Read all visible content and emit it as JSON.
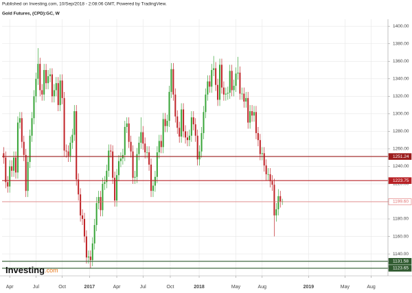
{
  "chart_data": {
    "type": "candlestick",
    "header": "Published on Investing.com, 10/Sep/2018 - 2:08:06 GMT, Powered by TradingView.",
    "title": "Gold Futures, (CPD):GC, W",
    "logo": [
      "Investing",
      ".com"
    ],
    "up_color": "#3aa63a",
    "down_color": "#c0262a",
    "grid": true,
    "open": [
      1255,
      1250,
      1222,
      1217,
      1240,
      1235,
      1250,
      1233,
      1290,
      1295,
      1268,
      1253,
      1212,
      1245,
      1275,
      1295,
      1320,
      1340,
      1357,
      1327,
      1322,
      1350,
      1335,
      1343,
      1345,
      1320,
      1327,
      1335,
      1310,
      1338,
      1318,
      1258,
      1257,
      1252,
      1267,
      1276,
      1303,
      1225,
      1208,
      1184,
      1180,
      1160,
      1136,
      1137,
      1133,
      1152,
      1173,
      1198,
      1205,
      1190,
      1220,
      1222,
      1235,
      1258,
      1257,
      1227,
      1201,
      1230,
      1246,
      1249,
      1253,
      1285,
      1289,
      1268,
      1257,
      1227,
      1228,
      1254,
      1267,
      1279,
      1266,
      1256,
      1256,
      1242,
      1212,
      1218,
      1228,
      1256,
      1269,
      1262,
      1294,
      1286,
      1292,
      1325,
      1351,
      1322,
      1297,
      1284,
      1274,
      1305,
      1280,
      1273,
      1270,
      1275,
      1296,
      1288,
      1275,
      1248,
      1257,
      1278,
      1302,
      1322,
      1337,
      1331,
      1350,
      1352,
      1333,
      1316,
      1356,
      1330,
      1322,
      1323,
      1324,
      1349,
      1327,
      1332,
      1346,
      1347,
      1323,
      1323,
      1314,
      1318,
      1290,
      1303,
      1298,
      1302,
      1278,
      1270,
      1254,
      1255,
      1241,
      1231,
      1231,
      1223,
      1219,
      1184,
      1191,
      1206,
      1200
    ],
    "high": [
      1262,
      1257,
      1229,
      1247,
      1247,
      1257,
      1257,
      1297,
      1302,
      1302,
      1275,
      1260,
      1252,
      1282,
      1302,
      1327,
      1347,
      1375,
      1364,
      1334,
      1357,
      1357,
      1350,
      1352,
      1352,
      1334,
      1342,
      1342,
      1345,
      1345,
      1325,
      1265,
      1264,
      1274,
      1283,
      1310,
      1310,
      1232,
      1215,
      1191,
      1187,
      1167,
      1144,
      1144,
      1159,
      1180,
      1205,
      1212,
      1212,
      1227,
      1229,
      1242,
      1265,
      1265,
      1264,
      1234,
      1237,
      1253,
      1256,
      1260,
      1292,
      1296,
      1296,
      1275,
      1264,
      1235,
      1261,
      1274,
      1296,
      1286,
      1273,
      1263,
      1263,
      1249,
      1225,
      1235,
      1263,
      1276,
      1276,
      1301,
      1301,
      1299,
      1332,
      1358,
      1358,
      1329,
      1304,
      1291,
      1312,
      1312,
      1287,
      1280,
      1282,
      1303,
      1303,
      1295,
      1282,
      1264,
      1285,
      1309,
      1329,
      1344,
      1344,
      1357,
      1366,
      1359,
      1340,
      1363,
      1363,
      1337,
      1330,
      1331,
      1356,
      1356,
      1339,
      1353,
      1365,
      1354,
      1330,
      1330,
      1325,
      1325,
      1310,
      1310,
      1309,
      1309,
      1285,
      1277,
      1262,
      1262,
      1248,
      1238,
      1238,
      1230,
      1226,
      1198,
      1214,
      1212,
      1203
    ],
    "low": [
      1243,
      1215,
      1210,
      1210,
      1228,
      1228,
      1226,
      1226,
      1283,
      1261,
      1246,
      1205,
      1205,
      1238,
      1268,
      1288,
      1313,
      1333,
      1320,
      1315,
      1315,
      1328,
      1328,
      1336,
      1313,
      1313,
      1320,
      1303,
      1303,
      1311,
      1251,
      1250,
      1245,
      1245,
      1260,
      1269,
      1218,
      1201,
      1177,
      1173,
      1153,
      1129,
      1129,
      1124,
      1126,
      1145,
      1166,
      1191,
      1183,
      1183,
      1213,
      1215,
      1228,
      1250,
      1220,
      1194,
      1194,
      1223,
      1239,
      1242,
      1246,
      1278,
      1261,
      1250,
      1220,
      1220,
      1221,
      1247,
      1260,
      1259,
      1249,
      1249,
      1235,
      1205,
      1205,
      1211,
      1221,
      1249,
      1255,
      1255,
      1279,
      1279,
      1285,
      1318,
      1315,
      1290,
      1277,
      1267,
      1267,
      1273,
      1266,
      1263,
      1263,
      1268,
      1281,
      1268,
      1241,
      1241,
      1250,
      1271,
      1295,
      1315,
      1324,
      1324,
      1343,
      1326,
      1309,
      1309,
      1323,
      1315,
      1315,
      1316,
      1317,
      1320,
      1320,
      1325,
      1339,
      1316,
      1316,
      1307,
      1307,
      1283,
      1283,
      1291,
      1291,
      1271,
      1263,
      1247,
      1247,
      1234,
      1224,
      1224,
      1216,
      1212,
      1160,
      1177,
      1184,
      1193,
      1196
    ],
    "close": [
      1250,
      1222,
      1217,
      1240,
      1235,
      1250,
      1233,
      1290,
      1295,
      1268,
      1253,
      1212,
      1245,
      1275,
      1295,
      1320,
      1340,
      1357,
      1327,
      1322,
      1350,
      1335,
      1343,
      1345,
      1320,
      1327,
      1335,
      1310,
      1338,
      1318,
      1258,
      1257,
      1252,
      1267,
      1276,
      1303,
      1225,
      1208,
      1184,
      1180,
      1160,
      1136,
      1137,
      1133,
      1152,
      1173,
      1198,
      1205,
      1190,
      1220,
      1222,
      1235,
      1258,
      1257,
      1227,
      1201,
      1230,
      1246,
      1249,
      1253,
      1285,
      1289,
      1268,
      1257,
      1227,
      1228,
      1254,
      1267,
      1279,
      1266,
      1256,
      1256,
      1242,
      1212,
      1218,
      1228,
      1256,
      1269,
      1262,
      1294,
      1286,
      1292,
      1325,
      1351,
      1322,
      1297,
      1284,
      1274,
      1305,
      1280,
      1273,
      1270,
      1275,
      1296,
      1288,
      1275,
      1248,
      1257,
      1278,
      1302,
      1322,
      1337,
      1331,
      1350,
      1352,
      1333,
      1316,
      1356,
      1330,
      1322,
      1323,
      1324,
      1349,
      1327,
      1332,
      1346,
      1347,
      1323,
      1323,
      1314,
      1318,
      1290,
      1303,
      1298,
      1302,
      1278,
      1270,
      1254,
      1255,
      1241,
      1231,
      1231,
      1223,
      1219,
      1184,
      1191,
      1206,
      1200,
      1200
    ],
    "xlim": [
      -0.8,
      190.3
    ],
    "xticks": [
      {
        "value": 3,
        "label": "Apr"
      },
      {
        "value": 16,
        "label": "Jul"
      },
      {
        "value": 29,
        "label": "Oct"
      },
      {
        "value": 42.5,
        "label": "2017"
      },
      {
        "value": 56,
        "label": "Apr"
      },
      {
        "value": 69,
        "label": "Jul"
      },
      {
        "value": 82.5,
        "label": "Oct"
      },
      {
        "value": 96.8,
        "label": "2018"
      },
      {
        "value": 115,
        "label": "May"
      },
      {
        "value": 128,
        "label": "Aug"
      },
      {
        "value": 151,
        "label": "2019"
      },
      {
        "value": 169,
        "label": "May"
      },
      {
        "value": 182,
        "label": "Aug"
      }
    ],
    "ylim": [
      1115,
      1408
    ],
    "yticks": [
      {
        "value": 1140,
        "label": "1140.00"
      },
      {
        "value": 1160,
        "label": "1160.00"
      },
      {
        "value": 1180,
        "label": "1180.00"
      },
      {
        "value": 1200,
        "label": "1200.00"
      },
      {
        "value": 1220,
        "label": "1220.00"
      },
      {
        "value": 1240,
        "label": "1240.00"
      },
      {
        "value": 1260,
        "label": "1260.00"
      },
      {
        "value": 1280,
        "label": "1280.00"
      },
      {
        "value": 1300,
        "label": "1300.00"
      },
      {
        "value": 1320,
        "label": "1320.00"
      },
      {
        "value": 1340,
        "label": "1340.00"
      },
      {
        "value": 1360,
        "label": "1360.00"
      },
      {
        "value": 1380,
        "label": "1380.00"
      },
      {
        "value": 1400,
        "label": "1400.00"
      }
    ],
    "levels": [
      {
        "value": 1251.24,
        "label": "1251.24",
        "color": "#9b1c1c"
      },
      {
        "value": 1223.75,
        "label": "1223.75",
        "color": "#b82226"
      },
      {
        "value": 1199.6,
        "label": "1199.60",
        "color": "#e07070"
      },
      {
        "value": 1131.58,
        "label": "1131.58",
        "color": "#2f5a2f"
      },
      {
        "value": 1123.65,
        "label": "1123.65",
        "color": "#2f5a2f"
      }
    ]
  }
}
